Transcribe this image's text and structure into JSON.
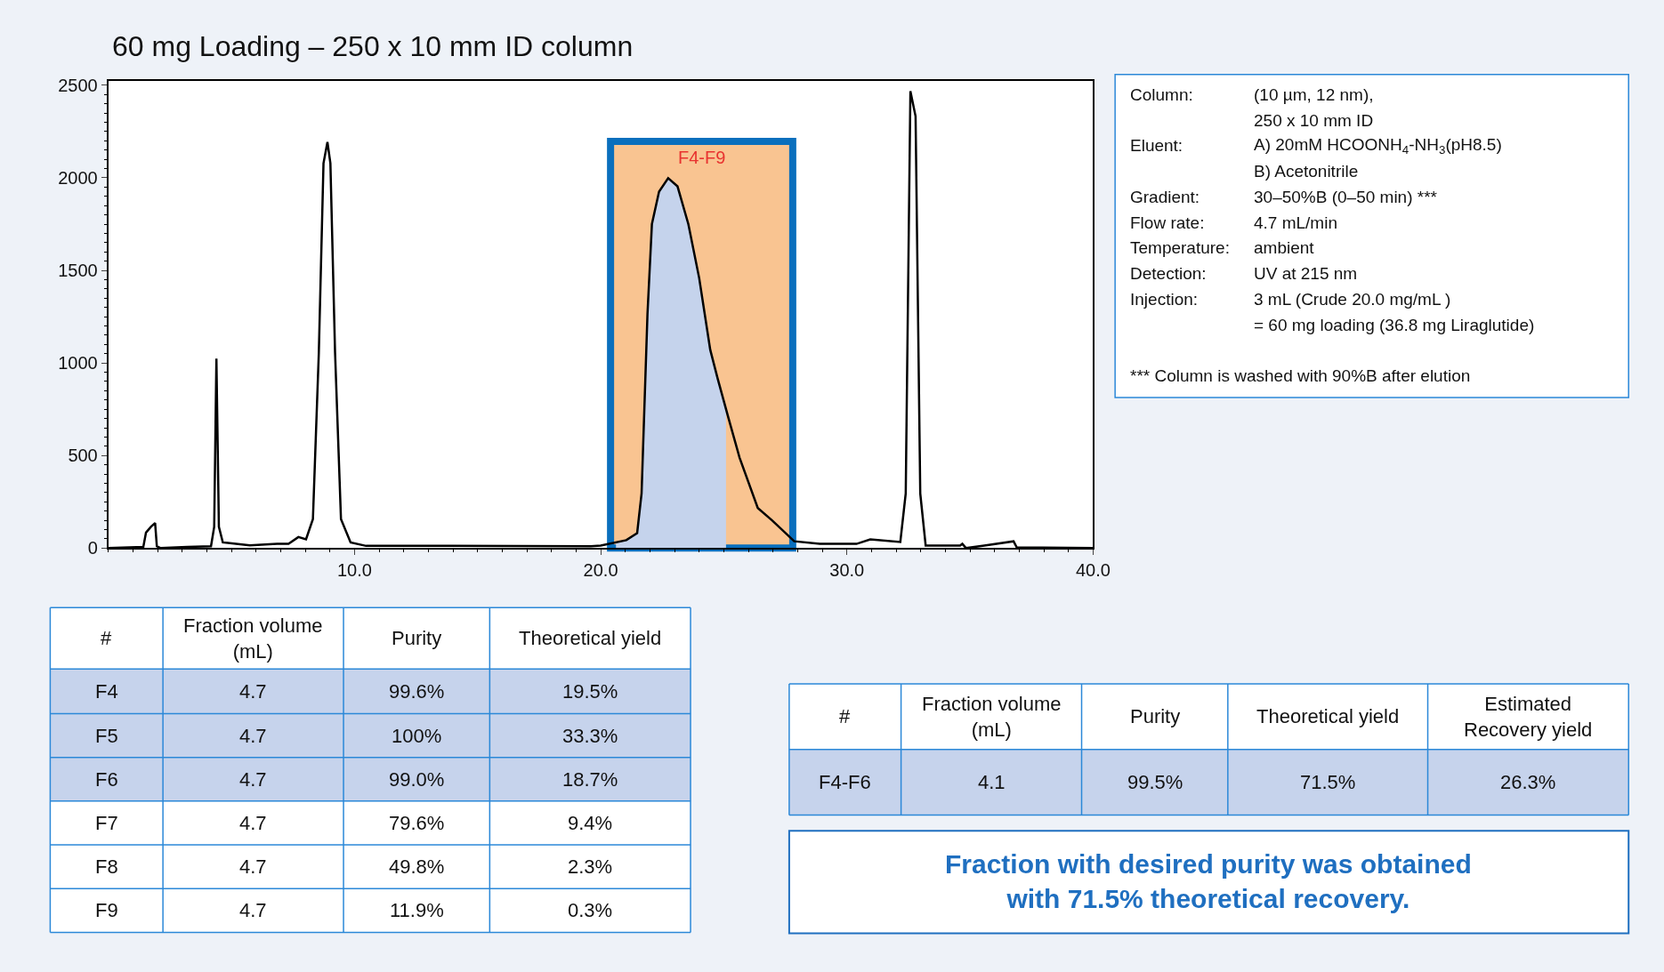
{
  "chart_data": [
    {
      "type": "line",
      "title": "60 mg Loading – 250 x 10 mm ID column",
      "xlim": [
        0,
        40
      ],
      "ylim": [
        0,
        2525
      ],
      "xticks": [
        {
          "value": 10,
          "label": "10.0"
        },
        {
          "value": 20,
          "label": "20.0"
        },
        {
          "value": 30,
          "label": "30.0"
        },
        {
          "value": 40,
          "label": "40.0"
        }
      ],
      "yticks": [
        0,
        500,
        1000,
        1500,
        2000,
        2500
      ],
      "grid": false,
      "legend": false,
      "marker": "none",
      "line_style": "solid",
      "bands": [
        {
          "axis": "x",
          "from": 20.4,
          "to": 27.8,
          "label": "F4-F9",
          "color": "#f9c491"
        }
      ],
      "series": [
        {
          "type": "area",
          "color": "#c5d3ec",
          "x": [
            20.62,
            21.04,
            21.48,
            21.66,
            21.9,
            22.08,
            22.37,
            22.74,
            23.12,
            23.56,
            24.0,
            24.45,
            24.75,
            25.09
          ],
          "values": [
            30,
            43,
            81,
            295,
            1265,
            1750,
            1925,
            1998,
            1954,
            1750,
            1459,
            1071,
            916,
            740
          ]
        },
        {
          "type": "line",
          "color": "#000000",
          "x": [
            0,
            1.42,
            1.53,
            1.73,
            1.9,
            1.97,
            2.13,
            3.2,
            4.17,
            4.3,
            4.39,
            4.49,
            4.65,
            5.75,
            6.85,
            7.32,
            7.72,
            8.03,
            8.31,
            8.55,
            8.74,
            8.9,
            9.02,
            9.21,
            9.45,
            9.84,
            10.47,
            13.94,
            19.6,
            20.0,
            21.04,
            21.48,
            21.66,
            21.9,
            22.08,
            22.37,
            22.74,
            23.12,
            23.56,
            24.0,
            24.45,
            24.75,
            25.19,
            25.64,
            26.38,
            26.97,
            27.86,
            28.9,
            30.39,
            30.95,
            32.17,
            32.39,
            32.58,
            32.79,
            32.98,
            33.2,
            34.6,
            34.69,
            34.84,
            35.58,
            36.77,
            36.9,
            40
          ],
          "values": [
            0,
            6,
            84,
            115,
            136,
            10,
            0,
            6,
            10,
            115,
            1024,
            115,
            31,
            15,
            23,
            23,
            60,
            48,
            157,
            1055,
            2079,
            2193,
            2079,
            1055,
            157,
            31,
            12,
            12,
            10,
            14,
            43,
            81,
            295,
            1265,
            1750,
            1925,
            1998,
            1954,
            1750,
            1459,
            1071,
            916,
            702,
            489,
            217,
            149,
            37,
            23,
            23,
            47,
            33,
            295,
            2468,
            2332,
            295,
            14,
            14,
            23,
            0,
            14,
            37,
            4,
            0
          ]
        }
      ]
    },
    {
      "type": "other",
      "annotations": [
        "Column:",
        "(10 µm, 12 nm),",
        null,
        "250 x 10 mm ID",
        "Eluent:",
        "A) 20mM HCOONH$_{4}$-NH$_{3}$(pH8.5)",
        null,
        "B) Acetonitrile",
        "Gradient:",
        "30–50%B (0–50 min) ***",
        "Flow rate:",
        "4.7 mL/min",
        "Temperature:",
        "ambient",
        "Detection:",
        "UV at 215 nm",
        "Injection:",
        "3 mL (Crude 20.0 mg/mL )",
        null,
        "= 60 mg loading (36.8 mg Liraglutide)",
        "*** Column is washed with 90%B after elution",
        null
      ]
    },
    {
      "type": "other",
      "categories": [
        "#",
        "Fraction volume\n(mL)",
        "Purity",
        "Theoretical yield"
      ],
      "colors": [
        "#ffffff",
        "#c6d3ec",
        "#c6d3ec",
        "#c6d3ec",
        "#ffffff",
        "#ffffff",
        "#ffffff"
      ],
      "annotations": [
        "F4",
        "4.7",
        "99.6%",
        "19.5%",
        "F5",
        "4.7",
        "100%",
        "33.3%",
        "F6",
        "4.7",
        "99.0%",
        "18.7%",
        "F7",
        "4.7",
        "79.6%",
        "9.4%",
        "F8",
        "4.7",
        "49.8%",
        "2.3%",
        "F9",
        "4.7",
        "11.9%",
        "0.3%"
      ]
    },
    {
      "type": "other",
      "categories": [
        "#",
        "Fraction volume\n(mL)",
        "Purity",
        "Theoretical yield",
        "Estimated\nRecovery yield"
      ],
      "colors": [
        "#ffffff",
        "#c6d3ec"
      ],
      "annotations": [
        "F4-F6",
        "4.1",
        "99.5%",
        "71.5%",
        "26.3%"
      ]
    },
    {
      "type": "other",
      "annotations": [
        "Fraction with desired purity was obtained\nwith 71.5% theoretical recovery."
      ]
    }
  ]
}
